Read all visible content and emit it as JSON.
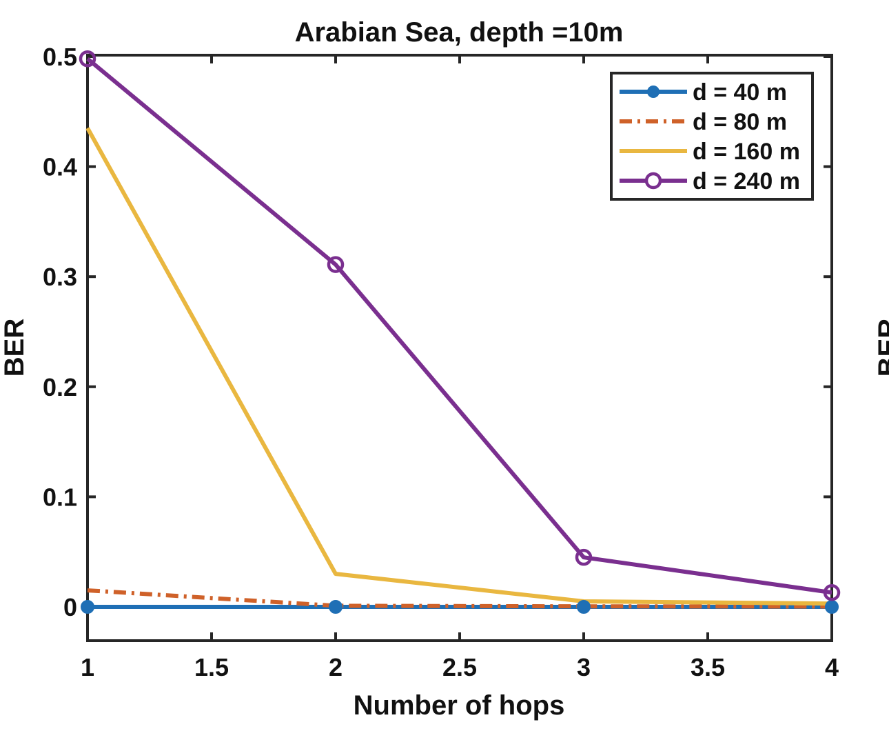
{
  "chart_data": {
    "type": "line",
    "title": "Arabian Sea, depth =10m",
    "xlabel": "Number of hops",
    "ylabel": "BER",
    "xlim": [
      1,
      4
    ],
    "ylim": [
      -0.03,
      0.5
    ],
    "xticks": [
      1,
      1.5,
      2,
      2.5,
      3,
      3.5,
      4
    ],
    "xtick_labels": [
      "1",
      "1.5",
      "2",
      "2.5",
      "3",
      "3.5",
      "4"
    ],
    "yticks": [
      0,
      0.1,
      0.2,
      0.3,
      0.4,
      0.5
    ],
    "ytick_labels": [
      "0",
      "0.1",
      "0.2",
      "0.3",
      "0.4",
      "0.5"
    ],
    "grid": false,
    "legend_position": "top-right",
    "x": [
      1,
      2,
      3,
      4
    ],
    "series": [
      {
        "name": "d = 40 m",
        "values": [
          0.0,
          0.0,
          0.0,
          0.0
        ],
        "color": "#1f6fb5",
        "style": "solid",
        "marker": "filled-circle"
      },
      {
        "name": "d = 80 m",
        "values": [
          0.015,
          0.001,
          0.0005,
          0.0003
        ],
        "color": "#cf6129",
        "style": "dash-dot",
        "marker": "none"
      },
      {
        "name": "d = 160 m",
        "values": [
          0.435,
          0.03,
          0.005,
          0.003
        ],
        "color": "#e9b740",
        "style": "solid",
        "marker": "none"
      },
      {
        "name": "d = 240 m",
        "values": [
          0.498,
          0.311,
          0.045,
          0.013
        ],
        "color": "#7a2f8f",
        "style": "solid",
        "marker": "open-circle"
      }
    ],
    "right_edge_partial_text": "BER"
  }
}
